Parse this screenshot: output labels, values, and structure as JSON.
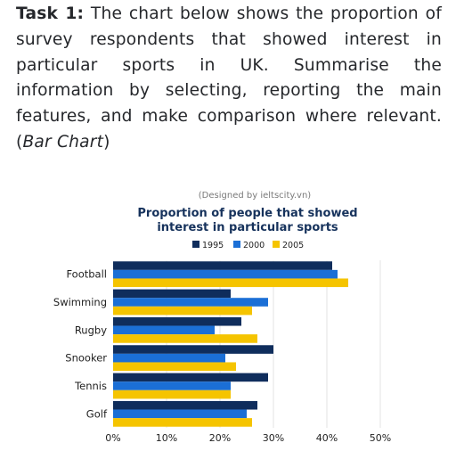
{
  "task": {
    "label": "Task 1:",
    "text": "The chart below shows the proportion of survey respondents that showed interest in particular sports in UK. Summarise the information by selecting, reporting the main features, and make comparison where relevant.",
    "type_open": "(",
    "type": "Bar Chart",
    "type_close": ")"
  },
  "chart_data": {
    "type": "bar",
    "orientation": "horizontal",
    "note": "(Designed by ieltscity.vn)",
    "title_lines": [
      "Proportion of people that showed",
      "interest in particular sports"
    ],
    "categories": [
      "Football",
      "Swimming",
      "Rugby",
      "Snooker",
      "Tennis",
      "Golf"
    ],
    "series": [
      {
        "name": "1995",
        "color": "#0f2d5c",
        "values": [
          41,
          22,
          24,
          30,
          29,
          27
        ]
      },
      {
        "name": "2000",
        "color": "#1b6fd6",
        "values": [
          42,
          29,
          19,
          21,
          22,
          25
        ]
      },
      {
        "name": "2005",
        "color": "#f5c400",
        "values": [
          44,
          26,
          27,
          23,
          22,
          26
        ]
      }
    ],
    "xlim": [
      0,
      50
    ],
    "ticks": [
      "0%",
      "10%",
      "20%",
      "30%",
      "40%",
      "50%"
    ],
    "grid": true,
    "legend": "top"
  }
}
